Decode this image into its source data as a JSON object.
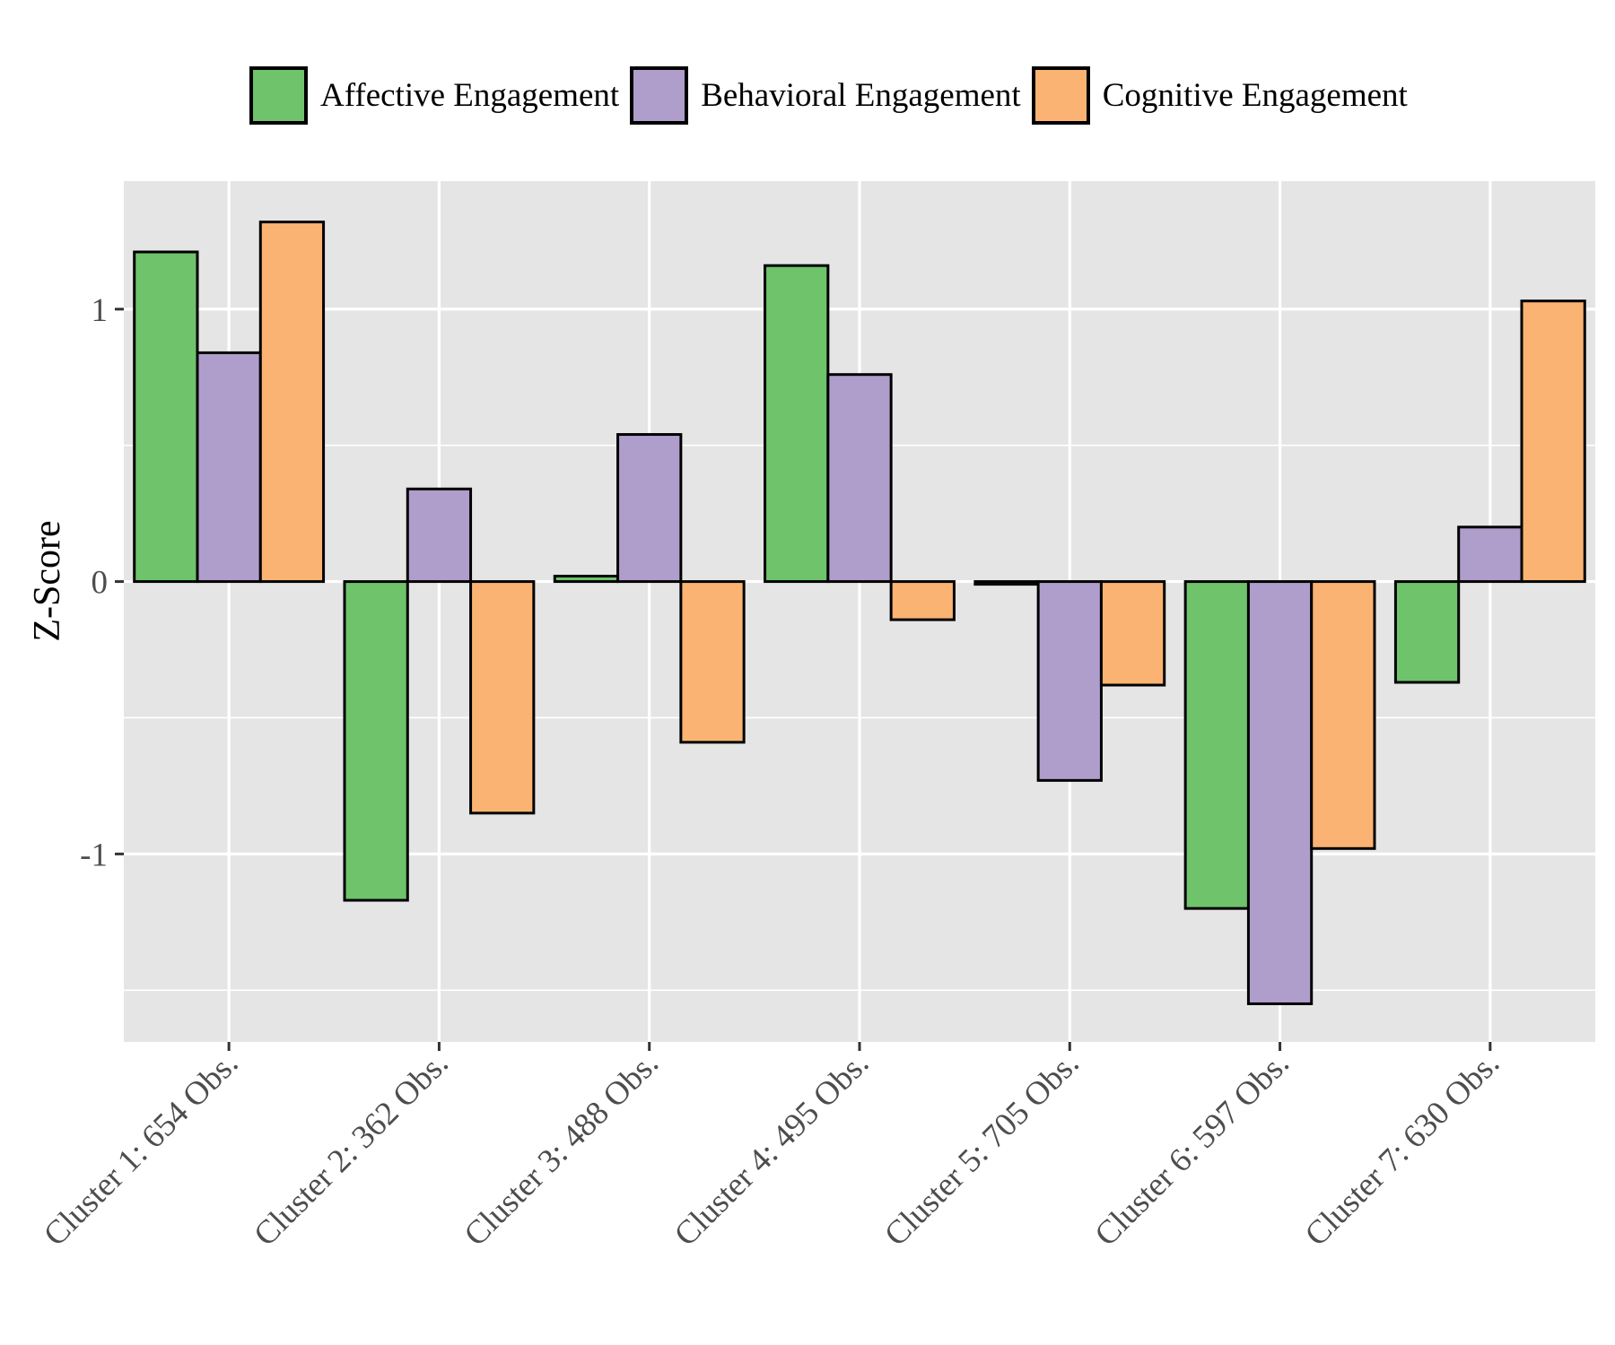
{
  "chart_data": {
    "type": "bar",
    "title": "",
    "xlabel": "",
    "ylabel": "Z-Score",
    "ylim": [
      -1.69,
      1.47
    ],
    "yticks": [
      -1,
      0,
      1
    ],
    "ytick_labels": [
      "-1",
      "0",
      "1"
    ],
    "grid": true,
    "legend_position": "top",
    "categories": [
      "Cluster 1: 654 Obs.",
      "Cluster 2: 362 Obs.",
      "Cluster 3: 488 Obs.",
      "Cluster 4: 495 Obs.",
      "Cluster 5: 705 Obs.",
      "Cluster 6: 597 Obs.",
      "Cluster 7: 630 Obs."
    ],
    "series": [
      {
        "name": "Affective Engagement",
        "color": "#6ec36b",
        "values": [
          1.21,
          -1.17,
          0.02,
          1.16,
          -0.01,
          -1.2,
          -0.37
        ]
      },
      {
        "name": "Behavioral Engagement",
        "color": "#af9dcc",
        "values": [
          0.84,
          0.34,
          0.54,
          0.76,
          -0.73,
          -1.55,
          0.2
        ]
      },
      {
        "name": "Cognitive Engagement",
        "color": "#fab373",
        "values": [
          1.32,
          -0.85,
          -0.59,
          -0.14,
          -0.38,
          -0.98,
          1.03
        ]
      }
    ]
  }
}
